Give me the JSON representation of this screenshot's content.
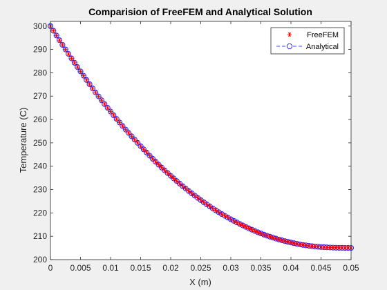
{
  "chart_data": {
    "type": "line",
    "title": "Comparision of FreeFEM and Analytical Solution",
    "xlabel": "X (m)",
    "ylabel": "Temperature (C)",
    "xlim": [
      0,
      0.05
    ],
    "ylim": [
      200,
      302
    ],
    "x_ticks": [
      "0",
      "0.005",
      "0.01",
      "0.015",
      "0.02",
      "0.025",
      "0.03",
      "0.035",
      "0.04",
      "0.045",
      "0.05"
    ],
    "y_ticks": [
      "200",
      "210",
      "220",
      "230",
      "240",
      "250",
      "260",
      "270",
      "280",
      "290",
      "300"
    ],
    "x_tick_values": [
      0,
      0.005,
      0.01,
      0.015,
      0.02,
      0.025,
      0.03,
      0.035,
      0.04,
      0.045,
      0.05
    ],
    "y_tick_values": [
      200,
      210,
      220,
      230,
      240,
      250,
      260,
      270,
      280,
      290,
      300
    ],
    "grid": false,
    "legend_position": "top-right",
    "x": [
      0,
      0.0025,
      0.005,
      0.0075,
      0.01,
      0.0125,
      0.015,
      0.0175,
      0.02,
      0.0225,
      0.025,
      0.0275,
      0.03,
      0.0325,
      0.035,
      0.0375,
      0.04,
      0.0425,
      0.045,
      0.0475,
      0.05
    ],
    "series": [
      {
        "name": "FreeFEM",
        "marker": "asterisk",
        "color": "#ff0000",
        "values": [
          300,
          290,
          280.6,
          271.6,
          263.4,
          255.7,
          248.6,
          241.9,
          235.9,
          230.4,
          225.5,
          221.1,
          217.3,
          214,
          211.2,
          209,
          207.3,
          206.1,
          205.4,
          205.1,
          205
        ]
      },
      {
        "name": "Analytical",
        "marker": "circle",
        "line": "dashed",
        "color": "#0000ff",
        "values": [
          300,
          290,
          280.6,
          271.6,
          263.4,
          255.7,
          248.6,
          241.9,
          235.9,
          230.4,
          225.5,
          221.1,
          217.3,
          214,
          211.2,
          209,
          207.3,
          206.1,
          205.4,
          205.1,
          205
        ]
      }
    ]
  }
}
